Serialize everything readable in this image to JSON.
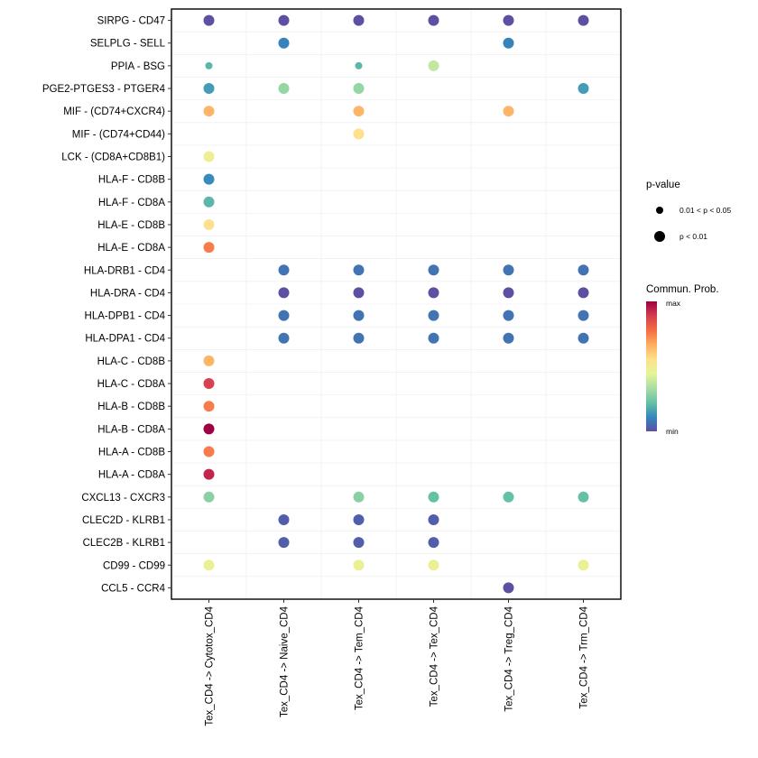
{
  "chart_data": {
    "type": "dotplot",
    "x_categories": [
      "Tex_CD4 -> Cytotox_CD4",
      "Tex_CD4 -> Naive_CD4",
      "Tex_CD4 -> Tem_CD4",
      "Tex_CD4 -> Tex_CD4",
      "Tex_CD4 -> Treg_CD4",
      "Tex_CD4 -> Trm_CD4"
    ],
    "y_categories": [
      "SIRPG - CD47",
      "SELPLG - SELL",
      "PPIA - BSG",
      "PGE2-PTGES3 - PTGER4",
      "MIF - (CD74+CXCR4)",
      "MIF - (CD74+CD44)",
      "LCK - (CD8A+CD8B1)",
      "HLA-F - CD8B",
      "HLA-F - CD8A",
      "HLA-E - CD8B",
      "HLA-E - CD8A",
      "HLA-DRB1 - CD4",
      "HLA-DRA - CD4",
      "HLA-DPB1 - CD4",
      "HLA-DPA1 - CD4",
      "HLA-C - CD8B",
      "HLA-C - CD8A",
      "HLA-B - CD8B",
      "HLA-B - CD8A",
      "HLA-A - CD8B",
      "HLA-A - CD8A",
      "CXCL13 - CXCR3",
      "CLEC2D - KLRB1",
      "CLEC2B - KLRB1",
      "CD99 - CD99",
      "CCL5 - CCR4"
    ],
    "points": [
      {
        "x": 0,
        "y": 0,
        "prob": 0.0,
        "p": "p < 0.01"
      },
      {
        "x": 1,
        "y": 0,
        "prob": 0.0,
        "p": "p < 0.01"
      },
      {
        "x": 2,
        "y": 0,
        "prob": 0.0,
        "p": "p < 0.01"
      },
      {
        "x": 3,
        "y": 0,
        "prob": 0.0,
        "p": "p < 0.01"
      },
      {
        "x": 4,
        "y": 0,
        "prob": 0.0,
        "p": "p < 0.01"
      },
      {
        "x": 5,
        "y": 0,
        "prob": 0.0,
        "p": "p < 0.01"
      },
      {
        "x": 1,
        "y": 1,
        "prob": 0.1,
        "p": "p < 0.01"
      },
      {
        "x": 4,
        "y": 1,
        "prob": 0.1,
        "p": "p < 0.01"
      },
      {
        "x": 0,
        "y": 2,
        "prob": 0.2,
        "p": "0.01 < p < 0.05"
      },
      {
        "x": 2,
        "y": 2,
        "prob": 0.2,
        "p": "0.01 < p < 0.05"
      },
      {
        "x": 3,
        "y": 2,
        "prob": 0.38,
        "p": "p < 0.01"
      },
      {
        "x": 0,
        "y": 3,
        "prob": 0.15,
        "p": "p < 0.01"
      },
      {
        "x": 1,
        "y": 3,
        "prob": 0.3,
        "p": "p < 0.01"
      },
      {
        "x": 2,
        "y": 3,
        "prob": 0.3,
        "p": "p < 0.01"
      },
      {
        "x": 5,
        "y": 3,
        "prob": 0.15,
        "p": "p < 0.01"
      },
      {
        "x": 0,
        "y": 4,
        "prob": 0.65,
        "p": "p < 0.01"
      },
      {
        "x": 2,
        "y": 4,
        "prob": 0.65,
        "p": "p < 0.01"
      },
      {
        "x": 4,
        "y": 4,
        "prob": 0.65,
        "p": "p < 0.01"
      },
      {
        "x": 2,
        "y": 5,
        "prob": 0.55,
        "p": "p < 0.01"
      },
      {
        "x": 0,
        "y": 6,
        "prob": 0.48,
        "p": "p < 0.01"
      },
      {
        "x": 0,
        "y": 7,
        "prob": 0.12,
        "p": "p < 0.01"
      },
      {
        "x": 0,
        "y": 8,
        "prob": 0.2,
        "p": "p < 0.01"
      },
      {
        "x": 0,
        "y": 9,
        "prob": 0.55,
        "p": "p < 0.01"
      },
      {
        "x": 0,
        "y": 10,
        "prob": 0.75,
        "p": "p < 0.01"
      },
      {
        "x": 1,
        "y": 11,
        "prob": 0.07,
        "p": "p < 0.01"
      },
      {
        "x": 2,
        "y": 11,
        "prob": 0.07,
        "p": "p < 0.01"
      },
      {
        "x": 3,
        "y": 11,
        "prob": 0.07,
        "p": "p < 0.01"
      },
      {
        "x": 4,
        "y": 11,
        "prob": 0.07,
        "p": "p < 0.01"
      },
      {
        "x": 5,
        "y": 11,
        "prob": 0.07,
        "p": "p < 0.01"
      },
      {
        "x": 1,
        "y": 12,
        "prob": 0.0,
        "p": "p < 0.01"
      },
      {
        "x": 2,
        "y": 12,
        "prob": 0.0,
        "p": "p < 0.01"
      },
      {
        "x": 3,
        "y": 12,
        "prob": 0.0,
        "p": "p < 0.01"
      },
      {
        "x": 4,
        "y": 12,
        "prob": 0.0,
        "p": "p < 0.01"
      },
      {
        "x": 5,
        "y": 12,
        "prob": 0.0,
        "p": "p < 0.01"
      },
      {
        "x": 1,
        "y": 13,
        "prob": 0.07,
        "p": "p < 0.01"
      },
      {
        "x": 2,
        "y": 13,
        "prob": 0.07,
        "p": "p < 0.01"
      },
      {
        "x": 3,
        "y": 13,
        "prob": 0.07,
        "p": "p < 0.01"
      },
      {
        "x": 4,
        "y": 13,
        "prob": 0.07,
        "p": "p < 0.01"
      },
      {
        "x": 5,
        "y": 13,
        "prob": 0.07,
        "p": "p < 0.01"
      },
      {
        "x": 1,
        "y": 14,
        "prob": 0.07,
        "p": "p < 0.01"
      },
      {
        "x": 2,
        "y": 14,
        "prob": 0.07,
        "p": "p < 0.01"
      },
      {
        "x": 3,
        "y": 14,
        "prob": 0.07,
        "p": "p < 0.01"
      },
      {
        "x": 4,
        "y": 14,
        "prob": 0.07,
        "p": "p < 0.01"
      },
      {
        "x": 5,
        "y": 14,
        "prob": 0.07,
        "p": "p < 0.01"
      },
      {
        "x": 0,
        "y": 15,
        "prob": 0.65,
        "p": "p < 0.01"
      },
      {
        "x": 0,
        "y": 16,
        "prob": 0.88,
        "p": "p < 0.01"
      },
      {
        "x": 0,
        "y": 17,
        "prob": 0.75,
        "p": "p < 0.01"
      },
      {
        "x": 0,
        "y": 18,
        "prob": 1.0,
        "p": "p < 0.01"
      },
      {
        "x": 0,
        "y": 19,
        "prob": 0.75,
        "p": "p < 0.01"
      },
      {
        "x": 0,
        "y": 20,
        "prob": 0.93,
        "p": "p < 0.01"
      },
      {
        "x": 0,
        "y": 21,
        "prob": 0.28,
        "p": "p < 0.01"
      },
      {
        "x": 2,
        "y": 21,
        "prob": 0.28,
        "p": "p < 0.01"
      },
      {
        "x": 3,
        "y": 21,
        "prob": 0.22,
        "p": "p < 0.01"
      },
      {
        "x": 4,
        "y": 21,
        "prob": 0.22,
        "p": "p < 0.01"
      },
      {
        "x": 5,
        "y": 21,
        "prob": 0.22,
        "p": "p < 0.01"
      },
      {
        "x": 1,
        "y": 22,
        "prob": 0.03,
        "p": "p < 0.01"
      },
      {
        "x": 2,
        "y": 22,
        "prob": 0.03,
        "p": "p < 0.01"
      },
      {
        "x": 3,
        "y": 22,
        "prob": 0.03,
        "p": "p < 0.01"
      },
      {
        "x": 1,
        "y": 23,
        "prob": 0.03,
        "p": "p < 0.01"
      },
      {
        "x": 2,
        "y": 23,
        "prob": 0.03,
        "p": "p < 0.01"
      },
      {
        "x": 3,
        "y": 23,
        "prob": 0.03,
        "p": "p < 0.01"
      },
      {
        "x": 0,
        "y": 24,
        "prob": 0.47,
        "p": "p < 0.01"
      },
      {
        "x": 2,
        "y": 24,
        "prob": 0.47,
        "p": "p < 0.01"
      },
      {
        "x": 3,
        "y": 24,
        "prob": 0.47,
        "p": "p < 0.01"
      },
      {
        "x": 5,
        "y": 24,
        "prob": 0.47,
        "p": "p < 0.01"
      },
      {
        "x": 4,
        "y": 25,
        "prob": 0.0,
        "p": "p < 0.01"
      }
    ],
    "legend_pvalue": {
      "title": "p-value",
      "entries": [
        "0.01 < p < 0.05",
        "p < 0.01"
      ]
    },
    "legend_color": {
      "title": "Commun. Prob.",
      "max_label": "max",
      "min_label": "min",
      "palette": "Spectral (reversed)",
      "colors": [
        "#5E4FA2",
        "#3288BD",
        "#66C2A5",
        "#ABDDA4",
        "#E6F598",
        "#FEE08B",
        "#FDAE61",
        "#F46D43",
        "#D53E4F",
        "#9E0142"
      ]
    },
    "grid": true,
    "legend_position": "right"
  }
}
